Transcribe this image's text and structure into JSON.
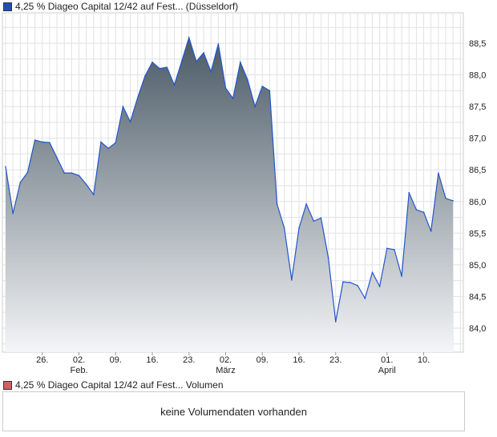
{
  "chart_data": {
    "type": "area",
    "title": "4,25 % Diageo Capital 12/42 auf Fest... (Düsseldorf)",
    "legend_color": "#1f4fb5",
    "line_color": "#2255cc",
    "ylim": [
      83.75,
      88.95
    ],
    "yticks": [
      "84,0",
      "84,5",
      "85,0",
      "85,5",
      "86,0",
      "86,5",
      "87,0",
      "87,5",
      "88,0",
      "88,5"
    ],
    "ytick_values": [
      84.0,
      84.5,
      85.0,
      85.5,
      86.0,
      86.5,
      87.0,
      87.5,
      88.0,
      88.5
    ],
    "xticks": [
      {
        "label": "26.",
        "index": 5
      },
      {
        "label": "02.",
        "index": 10,
        "month": "Feb."
      },
      {
        "label": "09.",
        "index": 15
      },
      {
        "label": "16.",
        "index": 20
      },
      {
        "label": "23.",
        "index": 25
      },
      {
        "label": "02.",
        "index": 30,
        "month": "März"
      },
      {
        "label": "09.",
        "index": 35
      },
      {
        "label": "16.",
        "index": 40
      },
      {
        "label": "23.",
        "index": 45
      },
      {
        "label": "01.",
        "index": 52,
        "month": "April"
      },
      {
        "label": "10.",
        "index": 57
      }
    ],
    "values": [
      86.55,
      85.81,
      86.3,
      86.46,
      86.97,
      86.94,
      86.93,
      86.69,
      86.45,
      86.45,
      86.41,
      86.27,
      86.11,
      86.94,
      86.84,
      86.93,
      87.5,
      87.26,
      87.64,
      87.98,
      88.2,
      88.1,
      88.12,
      87.84,
      88.21,
      88.59,
      88.21,
      88.35,
      88.05,
      88.49,
      87.79,
      87.63,
      88.2,
      87.92,
      87.5,
      87.82,
      87.75,
      85.96,
      85.58,
      84.76,
      85.58,
      85.96,
      85.69,
      85.74,
      85.11,
      84.1,
      84.73,
      84.72,
      84.67,
      84.47,
      84.88,
      84.66,
      85.26,
      85.24,
      84.82,
      86.14,
      85.87,
      85.83,
      85.53,
      86.45,
      86.05,
      86.01
    ]
  },
  "volume": {
    "legend": "4,25 % Diageo Capital 12/42 auf Fest... Volumen",
    "legend_color": "#d06060",
    "empty_text": "keine Volumendaten vorhanden"
  }
}
